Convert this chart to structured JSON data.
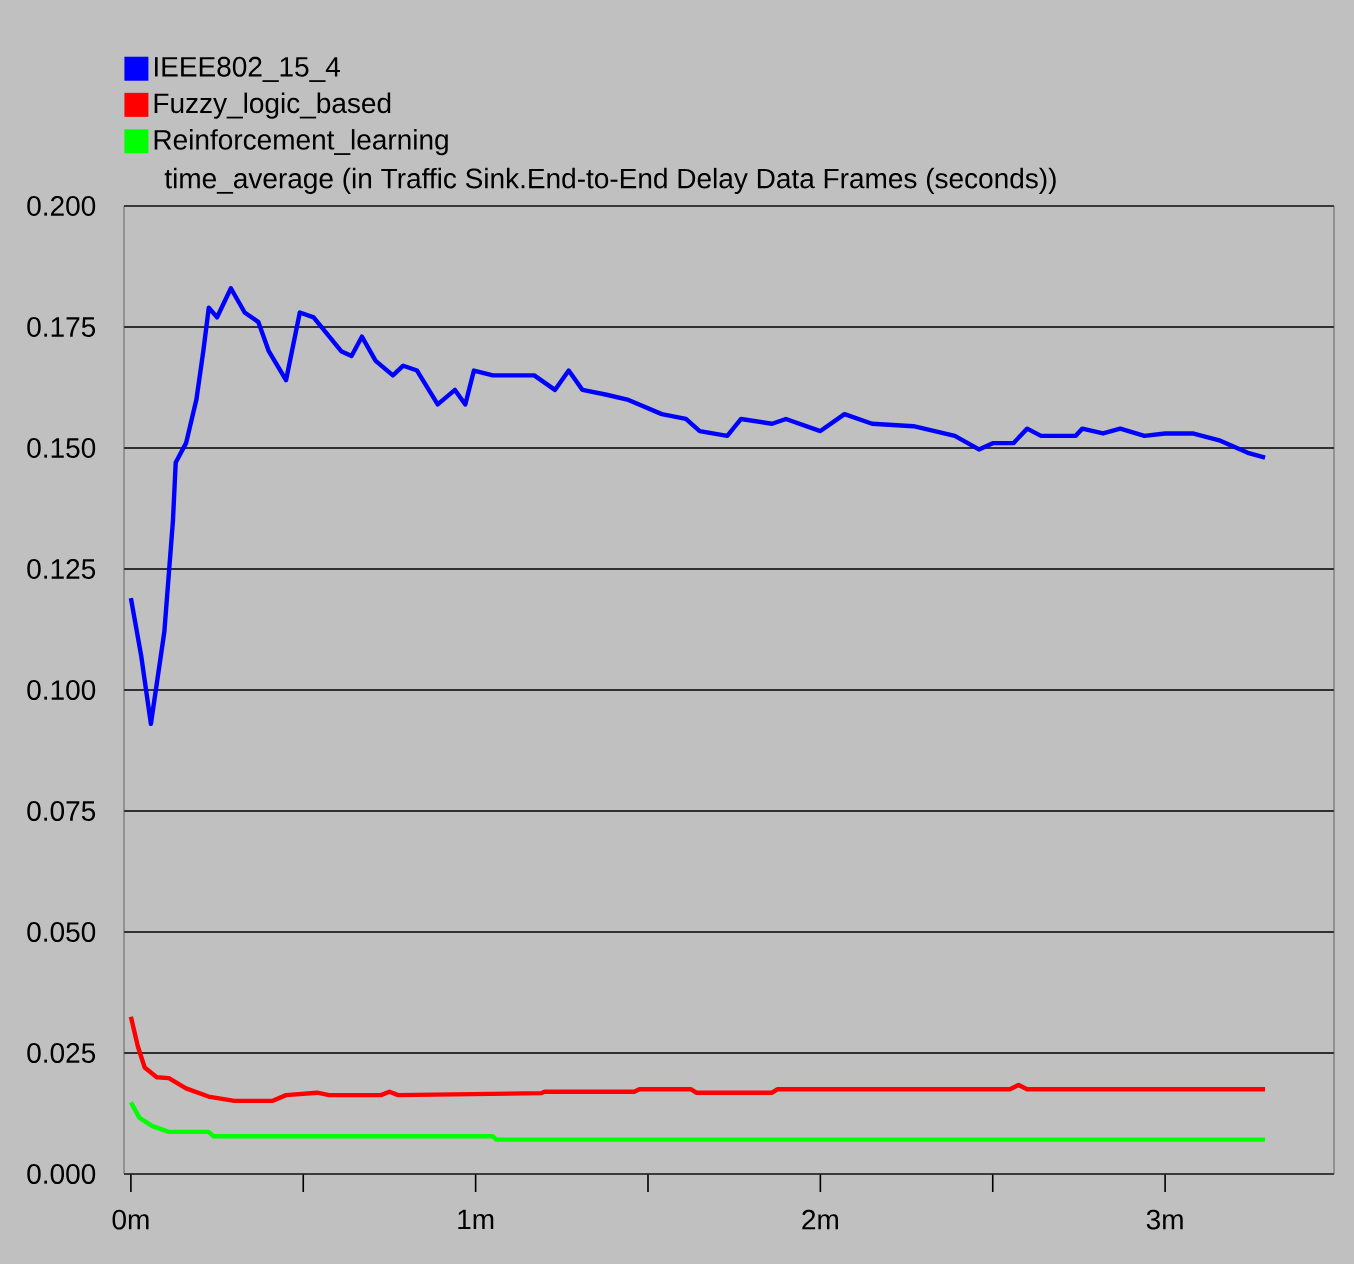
{
  "chart_data": {
    "type": "line",
    "title": "time_average (in Traffic Sink.End-to-End Delay Data Frames (seconds))",
    "legend": "top left",
    "grid": "y",
    "marker": "none",
    "line_style": "solid",
    "xlim": [
      -0.02,
      3.49
    ],
    "ylim": [
      0,
      0.2
    ],
    "xticks": [
      {
        "value": 0,
        "label": "0m"
      },
      {
        "value": 0.5,
        "label": null
      },
      {
        "value": 1,
        "label": "1m"
      },
      {
        "value": 1.5,
        "label": null
      },
      {
        "value": 2,
        "label": "2m"
      },
      {
        "value": 2.5,
        "label": null
      },
      {
        "value": 3,
        "label": "3m"
      }
    ],
    "yticks": [
      {
        "value": 0,
        "label": "0.000"
      },
      {
        "value": 0.025,
        "label": "0.025"
      },
      {
        "value": 0.05,
        "label": "0.050"
      },
      {
        "value": 0.075,
        "label": "0.075"
      },
      {
        "value": 0.1,
        "label": "0.100"
      },
      {
        "value": 0.125,
        "label": "0.125"
      },
      {
        "value": 0.15,
        "label": "0.150"
      },
      {
        "value": 0.175,
        "label": "0.175"
      },
      {
        "value": 0.2,
        "label": "0.200"
      }
    ],
    "series": [
      {
        "name": "IEEE802_15_4",
        "color": "#0000ff",
        "x": [
          0,
          0.03,
          0.058,
          0.097,
          0.122,
          0.13,
          0.16,
          0.19,
          0.21,
          0.226,
          0.25,
          0.29,
          0.33,
          0.37,
          0.4,
          0.45,
          0.49,
          0.53,
          0.61,
          0.64,
          0.67,
          0.71,
          0.76,
          0.79,
          0.83,
          0.89,
          0.94,
          0.97,
          0.995,
          1.05,
          1.17,
          1.23,
          1.27,
          1.31,
          1.38,
          1.44,
          1.54,
          1.61,
          1.65,
          1.73,
          1.77,
          1.86,
          1.9,
          2.0,
          2.07,
          2.15,
          2.27,
          2.39,
          2.46,
          2.5,
          2.56,
          2.6,
          2.64,
          2.74,
          2.76,
          2.82,
          2.87,
          2.94,
          3.0,
          3.08,
          3.16,
          3.24,
          3.29
        ],
        "values": [
          0.119,
          0.107,
          0.093,
          0.112,
          0.135,
          0.147,
          0.151,
          0.16,
          0.17,
          0.179,
          0.177,
          0.183,
          0.178,
          0.176,
          0.17,
          0.164,
          0.178,
          0.177,
          0.17,
          0.169,
          0.173,
          0.168,
          0.165,
          0.167,
          0.166,
          0.159,
          0.162,
          0.159,
          0.166,
          0.165,
          0.165,
          0.162,
          0.166,
          0.162,
          0.161,
          0.16,
          0.157,
          0.156,
          0.1535,
          0.1525,
          0.156,
          0.155,
          0.156,
          0.1535,
          0.157,
          0.155,
          0.1545,
          0.1525,
          0.1497,
          0.151,
          0.151,
          0.154,
          0.1525,
          0.1525,
          0.154,
          0.153,
          0.154,
          0.1525,
          0.153,
          0.153,
          0.1515,
          0.149,
          0.148
        ]
      },
      {
        "name": "Fuzzy_logic_based",
        "color": "#ff0000",
        "x": [
          0,
          0.02,
          0.04,
          0.075,
          0.11,
          0.16,
          0.225,
          0.3,
          0.41,
          0.45,
          0.54,
          0.575,
          0.725,
          0.75,
          0.775,
          1.19,
          1.2,
          1.46,
          1.475,
          1.625,
          1.64,
          1.86,
          1.875,
          2.55,
          2.575,
          2.6,
          3.29
        ],
        "values": [
          0.0325,
          0.0264,
          0.022,
          0.02,
          0.0198,
          0.0177,
          0.016,
          0.0151,
          0.0151,
          0.0163,
          0.0168,
          0.0163,
          0.0163,
          0.017,
          0.0163,
          0.0167,
          0.017,
          0.017,
          0.0175,
          0.0175,
          0.0168,
          0.0168,
          0.0175,
          0.0175,
          0.0184,
          0.0175,
          0.0175
        ]
      },
      {
        "name": "Reinforcement_learning",
        "color": "#00ff00",
        "x": [
          0,
          0.025,
          0.0625,
          0.11,
          0.225,
          0.24,
          1.05,
          1.06,
          3.29
        ],
        "values": [
          0.0148,
          0.0116,
          0.0099,
          0.0087,
          0.0087,
          0.0078,
          0.0078,
          0.0071,
          0.0071
        ]
      }
    ]
  }
}
